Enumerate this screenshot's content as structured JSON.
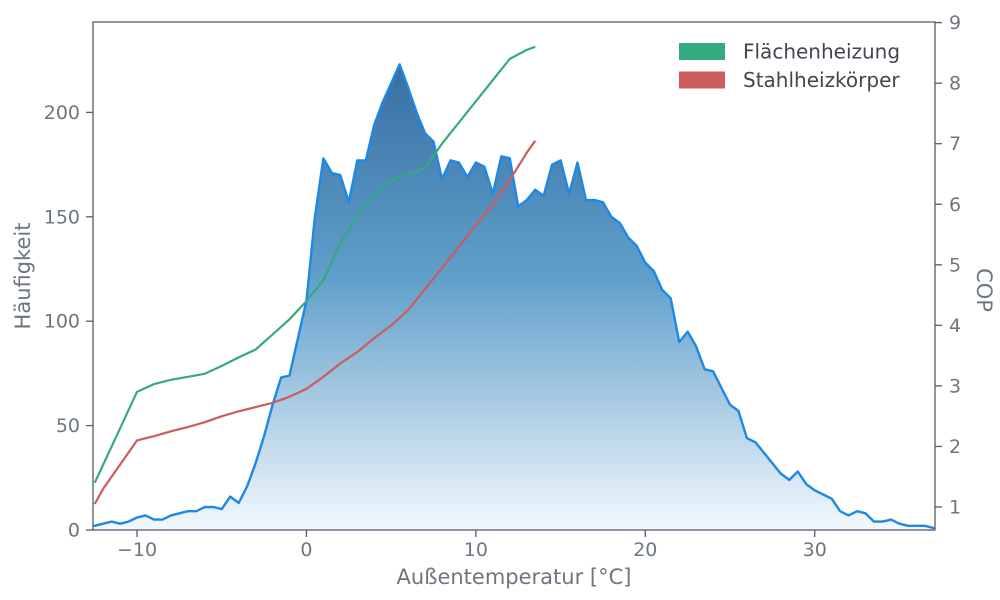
{
  "chart_data": {
    "type": "area",
    "title": "",
    "x_label": "Außentemperatur [°C]",
    "y_left_label": "Häufigkeit",
    "y_right_label": "COP",
    "x_range": [
      -12.6,
      37.1
    ],
    "y_left_range": [
      0,
      243.3
    ],
    "y_right_range": [
      0.62,
      9.01
    ],
    "x_ticks": {
      "values": [
        -10,
        0,
        10,
        20,
        30
      ],
      "labels": [
        "−10",
        "0",
        "10",
        "20",
        "30"
      ]
    },
    "y_left_ticks": {
      "values": [
        0,
        50,
        100,
        150,
        200
      ],
      "labels": [
        "0",
        "50",
        "100",
        "150",
        "200"
      ]
    },
    "y_right_ticks": {
      "values": [
        1,
        2,
        3,
        4,
        5,
        6,
        7,
        8,
        9
      ],
      "labels": [
        "1",
        "2",
        "3",
        "4",
        "5",
        "6",
        "7",
        "8",
        "9"
      ]
    },
    "grid": "off",
    "histogram": {
      "name": "Häufigkeit",
      "axis": "left",
      "line_color": "#1e88e5",
      "fill_gradient": [
        {
          "offset": 0,
          "color": "#30659c"
        },
        {
          "offset": 0.5,
          "color": "#5f9fca"
        },
        {
          "offset": 1,
          "color": "#f3f8fd"
        }
      ],
      "x_start": -12.5,
      "x_step": 0.5,
      "values": [
        2,
        3,
        4,
        3,
        4,
        6,
        7,
        5,
        5,
        7,
        8,
        9,
        9,
        11,
        11,
        10,
        16,
        13,
        21,
        32,
        45,
        60,
        73,
        74,
        92,
        110,
        150,
        178,
        171,
        170,
        157,
        177,
        177,
        194,
        205,
        214,
        223,
        212,
        200,
        190,
        186,
        168,
        177,
        176,
        169,
        176,
        174,
        161,
        179,
        178,
        155,
        158,
        163,
        160,
        175,
        177,
        161,
        176,
        158,
        158,
        157,
        150,
        147,
        140,
        136,
        128,
        124,
        115,
        111,
        90,
        95,
        88,
        77,
        76,
        68,
        60,
        57,
        44,
        42,
        37,
        32,
        27,
        24,
        28,
        22,
        19,
        17,
        15,
        9,
        7,
        9,
        8,
        4,
        4,
        5,
        3,
        2,
        2,
        2,
        1
      ]
    },
    "series": [
      {
        "name": "Flächenheizung",
        "axis": "right",
        "color": "#35ab7d",
        "x": [
          -12.5,
          -12,
          -11,
          -10,
          -9,
          -8,
          -7,
          -6,
          -5,
          -4,
          -3,
          -2,
          -1,
          0,
          1,
          2,
          3,
          4,
          5,
          6,
          7,
          8,
          9,
          10,
          11,
          12,
          13,
          13.5
        ],
        "values": [
          1.4,
          1.7,
          2.3,
          2.9,
          3.03,
          3.1,
          3.15,
          3.2,
          3.33,
          3.47,
          3.6,
          3.85,
          4.1,
          4.4,
          4.75,
          5.35,
          5.8,
          6.15,
          6.4,
          6.5,
          6.6,
          7.0,
          7.35,
          7.7,
          8.05,
          8.4,
          8.55,
          8.6
        ]
      },
      {
        "name": "Stahlheizkörper",
        "axis": "right",
        "color": "#cd5c5c",
        "x": [
          -12.5,
          -12,
          -11,
          -10,
          -9,
          -8,
          -7,
          -6,
          -5,
          -4,
          -3,
          -2,
          -1,
          0,
          1,
          2,
          3,
          4,
          5,
          6,
          7,
          8,
          9,
          10,
          11,
          12,
          13,
          13.5
        ],
        "values": [
          1.05,
          1.3,
          1.7,
          2.1,
          2.17,
          2.25,
          2.32,
          2.4,
          2.5,
          2.58,
          2.65,
          2.72,
          2.82,
          2.95,
          3.15,
          3.37,
          3.56,
          3.79,
          4.0,
          4.25,
          4.6,
          4.95,
          5.3,
          5.65,
          6.0,
          6.4,
          6.85,
          7.05
        ]
      }
    ],
    "legend": {
      "position": "upper right",
      "entries": [
        "Flächenheizung",
        "Stahlheizkörper"
      ]
    },
    "style": {
      "spine_color": "#555d6b",
      "tick_color": "#555d6b",
      "tick_text_color": "#6e7680",
      "legend_text_color": "#3f4750",
      "background": "#ffffff"
    }
  }
}
